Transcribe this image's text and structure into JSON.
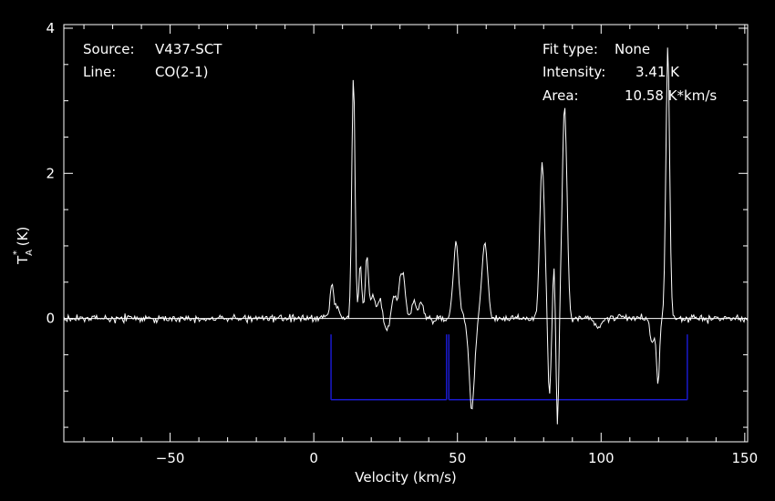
{
  "info": {
    "source_label": "Source:",
    "source_value": "V437-SCT",
    "line_label": "Line:",
    "line_value": "CO(2-1)",
    "fit_label": "Fit type:",
    "fit_value": "None",
    "intensity_label": "Intensity:",
    "intensity_value": "3.41 K",
    "area_label": "Area:",
    "area_value": "10.58 K*km/s"
  },
  "colors": {
    "background": "#000000",
    "foreground": "#ffffff",
    "baseline_window": "#1a1acc"
  },
  "chart_data": {
    "type": "line",
    "title": "",
    "xlabel": "Velocity (km/s)",
    "ylabel_main": "T",
    "ylabel_sup": "*",
    "ylabel_sub": "A",
    "ylabel_unit": " (K)",
    "xlim": [
      -87,
      151
    ],
    "ylim": [
      -1.7,
      4.05
    ],
    "xticks": [
      -50,
      0,
      50,
      100,
      150
    ],
    "yticks": [
      0,
      2,
      4
    ],
    "zero_line": 0,
    "spectrum": {
      "noise_rms": 0.05,
      "noise_start": -87,
      "noise_end": 151,
      "noise_step": 0.38,
      "features": [
        {
          "center": 6.2,
          "amp": 0.45,
          "width": 0.6
        },
        {
          "center": 8.0,
          "amp": 0.15,
          "width": 0.8
        },
        {
          "center": 13.8,
          "amp": 3.35,
          "width": 0.55
        },
        {
          "center": 16.2,
          "amp": 0.75,
          "width": 0.5
        },
        {
          "center": 18.5,
          "amp": 0.85,
          "width": 0.55
        },
        {
          "center": 20.5,
          "amp": 0.35,
          "width": 0.7
        },
        {
          "center": 23.0,
          "amp": 0.25,
          "width": 0.8
        },
        {
          "center": 25.5,
          "amp": -0.15,
          "width": 1.0
        },
        {
          "center": 28.0,
          "amp": 0.35,
          "width": 0.8
        },
        {
          "center": 30.3,
          "amp": 0.55,
          "width": 0.7
        },
        {
          "center": 31.5,
          "amp": 0.4,
          "width": 0.6
        },
        {
          "center": 35.0,
          "amp": 0.25,
          "width": 0.8
        },
        {
          "center": 37.5,
          "amp": 0.2,
          "width": 0.8
        },
        {
          "center": 49.5,
          "amp": 1.05,
          "width": 0.95
        },
        {
          "center": 55.0,
          "amp": -1.25,
          "width": 0.95
        },
        {
          "center": 59.5,
          "amp": 1.05,
          "width": 1.0
        },
        {
          "center": 79.5,
          "amp": 2.15,
          "width": 0.85
        },
        {
          "center": 82.0,
          "amp": -1.1,
          "width": 0.5
        },
        {
          "center": 83.6,
          "amp": 0.75,
          "width": 0.4
        },
        {
          "center": 84.8,
          "amp": -1.5,
          "width": 0.45
        },
        {
          "center": 87.3,
          "amp": 2.9,
          "width": 0.85
        },
        {
          "center": 99.0,
          "amp": -0.15,
          "width": 1.0
        },
        {
          "center": 118.0,
          "amp": -0.35,
          "width": 0.8
        },
        {
          "center": 119.8,
          "amp": -0.9,
          "width": 0.5
        },
        {
          "center": 123.2,
          "amp": 3.7,
          "width": 0.65
        }
      ]
    },
    "baseline_windows": {
      "bar_level": -1.12,
      "top_level": -0.22,
      "edges": [
        6.0,
        46.2,
        47.0,
        130.0
      ],
      "bars": [
        [
          6.0,
          46.2
        ],
        [
          47.0,
          130.0
        ]
      ]
    }
  }
}
